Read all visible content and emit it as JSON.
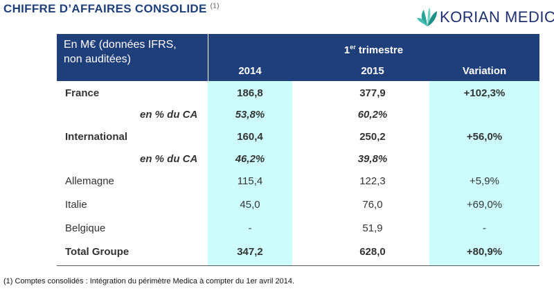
{
  "title": {
    "text": "CHIFFRE D’AFFAIRES CONSOLIDE",
    "note_ref": "(1)"
  },
  "logo": {
    "text": "KORIAN MEDICA",
    "icon": "leaf-icon"
  },
  "table": {
    "caption": "En M€ (données IFRS,\nnon auditées)",
    "period": {
      "prefix": "1",
      "sup": "er",
      "suffix": " trimestre"
    },
    "columns": [
      "2014",
      "2015",
      "Variation"
    ],
    "highlight_color": "#ccfcfc",
    "header_color": "#1f3f7a",
    "rows": [
      {
        "label": "France",
        "style": "bold",
        "v2014": "186,8",
        "v2015": "377,9",
        "variation": "+102,3%"
      },
      {
        "label": "en % du CA",
        "style": "sub",
        "v2014": "53,8%",
        "v2015": "60,2%",
        "variation": ""
      },
      {
        "label": "International",
        "style": "bold",
        "v2014": "160,4",
        "v2015": "250,2",
        "variation": "+56,0%"
      },
      {
        "label": "en % du CA",
        "style": "sub",
        "v2014": "46,2%",
        "v2015": "39,8%",
        "variation": ""
      },
      {
        "label": "Allemagne",
        "style": "normal",
        "v2014": "115,4",
        "v2015": "122,3",
        "variation": "+5,9%"
      },
      {
        "label": "Italie",
        "style": "normal",
        "v2014": "45,0",
        "v2015": "76,0",
        "variation": "+69,0%"
      },
      {
        "label": "Belgique",
        "style": "normal",
        "v2014": "-",
        "v2015": "51,9",
        "variation": "-"
      },
      {
        "label": "Total Groupe",
        "style": "bold",
        "v2014": "347,2",
        "v2015": "628,0",
        "variation": "+80,9%"
      }
    ]
  },
  "footnote": "(1) Comptes consolidés : Intégration du périmètre Medica à compter du 1er avril 2014."
}
